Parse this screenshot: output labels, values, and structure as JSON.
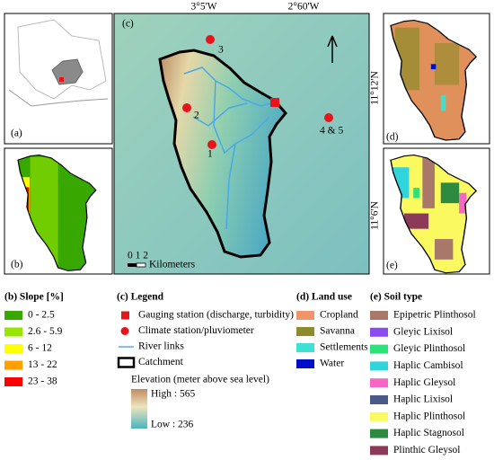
{
  "panels": {
    "a": "(a)",
    "b": "(b)",
    "c": "(c)",
    "d": "(d)",
    "e": "(e)"
  },
  "map_labels": {
    "longitudes": [
      "3°5'W",
      "2°60'W"
    ],
    "latitudes": [
      "11°12'N",
      "11°6'N"
    ],
    "stations": [
      "1",
      "2",
      "3",
      "4 & 5"
    ],
    "scale_numbers": "0 1 2",
    "scale_unit": "Kilometers"
  },
  "legends": [
    {
      "title": "(b) Slope [%]",
      "items": [
        {
          "label": "0 - 2.5",
          "color": "#38a800"
        },
        {
          "label": "2.6 - 5.9",
          "color": "#98e600"
        },
        {
          "label": "6 - 12",
          "color": "#ffff00"
        },
        {
          "label": "13 - 22",
          "color": "#ff9f00"
        },
        {
          "label": "23 - 38",
          "color": "#ff0000"
        }
      ]
    },
    {
      "title": "(c) Legend",
      "items": [
        {
          "label": "Gauging station (discharge, turbidity)",
          "color": "#e8141c",
          "marker": "square"
        },
        {
          "label": "Climate station/pluviometer",
          "color": "#e8141c",
          "marker": "circle"
        },
        {
          "label": "River links",
          "color": "#5aa8e8",
          "marker": "line"
        },
        {
          "label": "Catchment",
          "color": "#000000",
          "marker": "outline"
        }
      ],
      "elevation_title": "Elevation (meter above sea level)",
      "high": "High : 565",
      "low": "Low : 236"
    },
    {
      "title": "(d) Land use",
      "items": [
        {
          "label": "Cropland",
          "color": "#f0946a"
        },
        {
          "label": "Savanna",
          "color": "#8c8c2a"
        },
        {
          "label": "Settlements",
          "color": "#3ee0d4"
        },
        {
          "label": "Water",
          "color": "#0010c8"
        }
      ]
    },
    {
      "title": "(e) Soil type",
      "items": [
        {
          "label": "Epipetric Plinthosol",
          "color": "#a8786a"
        },
        {
          "label": "Gleyic Lixisol",
          "color": "#8a4cf0"
        },
        {
          "label": "Gleyic Plinthosol",
          "color": "#2ee07a"
        },
        {
          "label": "Haplic Cambisol",
          "color": "#30d4dc"
        },
        {
          "label": "Haplic Gleysol",
          "color": "#f468c4"
        },
        {
          "label": "Haplic Lixisol",
          "color": "#4a5a88"
        },
        {
          "label": "Haplic Plinthosol",
          "color": "#fafa60"
        },
        {
          "label": "Haplic Stagnosol",
          "color": "#2e8a40"
        },
        {
          "label": "Plinthic Gleysol",
          "color": "#8c3a5a"
        }
      ]
    }
  ]
}
